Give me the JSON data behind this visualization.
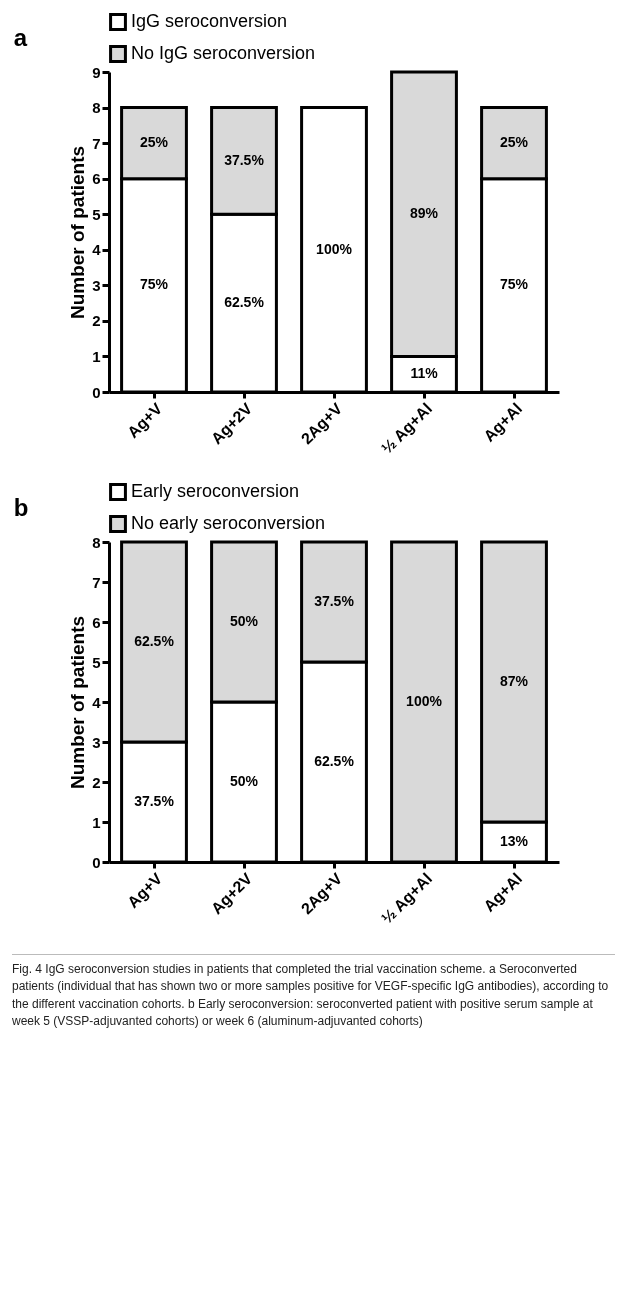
{
  "chart_data": [
    {
      "type": "bar",
      "title": "a",
      "categories": [
        "Ag+V",
        "Ag+2V",
        "2Ag+V",
        "½ Ag+Al",
        "Ag+Al"
      ],
      "stacked": true,
      "ylabel": "Number of patients",
      "ylim": [
        0,
        9
      ],
      "yticks": [
        0,
        1,
        2,
        3,
        4,
        5,
        6,
        7,
        8,
        9
      ],
      "legend": "top",
      "grid": false,
      "series": [
        {
          "name": "IgG seroconversion",
          "color": "#ffffff",
          "values": [
            6,
            5,
            8,
            1,
            6
          ]
        },
        {
          "name": "No IgG seroconversion",
          "color": "#d9d9d9",
          "values": [
            2,
            3,
            0,
            8,
            2
          ]
        }
      ],
      "annotations": [
        "75%",
        "62.5%",
        "100%",
        "11%",
        "75%",
        "25%",
        "37.5%",
        "89%",
        "25%"
      ]
    },
    {
      "type": "bar",
      "title": "b",
      "categories": [
        "Ag+V",
        "Ag+2V",
        "2Ag+V",
        "½ Ag+Al",
        "Ag+Al"
      ],
      "stacked": true,
      "ylabel": "Number of patients",
      "ylim": [
        0,
        8
      ],
      "yticks": [
        0,
        1,
        2,
        3,
        4,
        5,
        6,
        7,
        8
      ],
      "legend": "top",
      "grid": false,
      "series": [
        {
          "name": "Early seroconversion",
          "color": "#ffffff",
          "values": [
            3,
            4,
            5,
            0,
            1
          ]
        },
        {
          "name": "No early seroconversion",
          "color": "#d9d9d9",
          "values": [
            5,
            4,
            3,
            8,
            7
          ]
        }
      ],
      "annotations": [
        "37.5%",
        "50%",
        "62.5%",
        "13%",
        "62.5%",
        "50%",
        "37.5%",
        "100%",
        "87%",
        "Fig. 4 IgG seroconversion studies in patients that completed the trial vaccination scheme. a Seroconverted patients (individual that has shown two or more samples positive for VEGF-specific IgG antibodies), according to the different vaccination cohorts. b Early seroconversion: seroconverted patient with positive serum sample at week 5 (VSSP-adjuvanted cohorts) or week 6 (aluminum-adjuvanted cohorts)"
      ]
    }
  ]
}
